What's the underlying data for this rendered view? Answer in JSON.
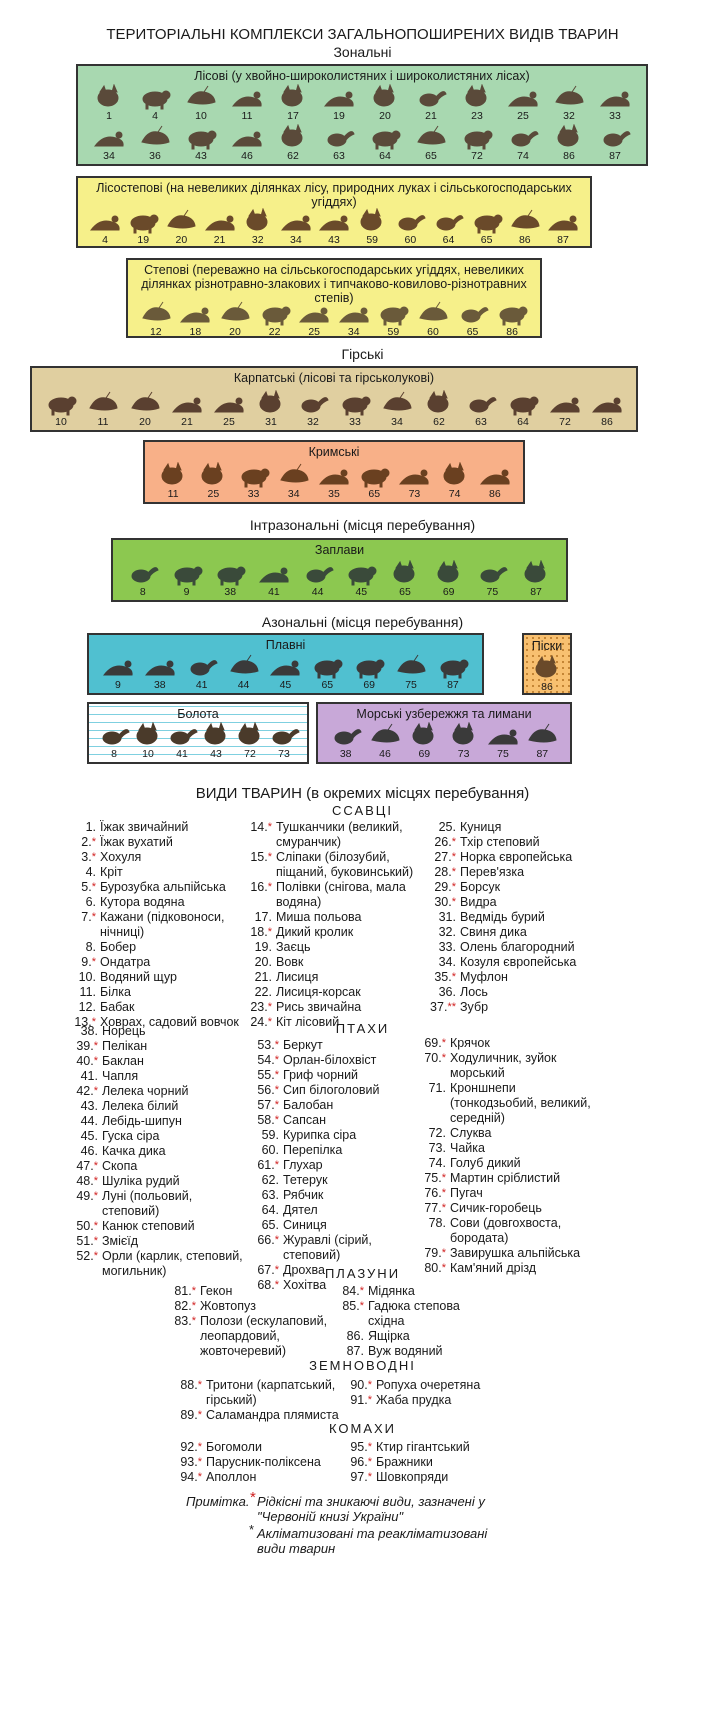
{
  "header": {
    "title": "ТЕРИТОРІАЛЬНІ КОМПЛЕКСИ ЗАГАЛЬНОПОШИРЕНИХ ВИДІВ ТВАРИН",
    "zonal": "Зональні",
    "mountain": "Гірські",
    "intrazonal": "Інтразональні (місця перебування)",
    "azonal": "Азональні (місця перебування)"
  },
  "panels": {
    "forest": {
      "title": "Лісові (у хвойно-широколистяних і широколистяних лісах)",
      "color": "#a8d8b0",
      "row1": [
        "1",
        "4",
        "10",
        "11",
        "17",
        "19",
        "20",
        "21",
        "23",
        "25",
        "32",
        "33"
      ],
      "row2": [
        "34",
        "36",
        "43",
        "46",
        "62",
        "63",
        "64",
        "65",
        "72",
        "74",
        "86",
        "87"
      ]
    },
    "foreststeppe": {
      "title": "Лісостепові (на невеликих ділянках лісу, природних луках і сільськогосподарських угіддях)",
      "color": "#f6f08a",
      "row1": [
        "4",
        "19",
        "20",
        "21",
        "32",
        "34",
        "43",
        "59",
        "60",
        "64",
        "65",
        "86",
        "87"
      ]
    },
    "steppe": {
      "title": "Степові (переважно на сільськогосподарських угіддях, невеликих ділянках різнотравно-злакових і типчаково-ковилово-різнотравних степів)",
      "color": "#f6f08a",
      "row1": [
        "12",
        "18",
        "20",
        "22",
        "25",
        "34",
        "59",
        "60",
        "65",
        "86"
      ]
    },
    "carpathian": {
      "title": "Карпатські (лісові та гірськолукові)",
      "color": "#e0cfa0",
      "row1": [
        "10",
        "11",
        "20",
        "21",
        "25",
        "31",
        "32",
        "33",
        "34",
        "62",
        "63",
        "64",
        "72",
        "86"
      ]
    },
    "crimean": {
      "title": "Кримські",
      "color": "#f8b088",
      "row1": [
        "11",
        "25",
        "33",
        "34",
        "35",
        "65",
        "73",
        "74",
        "86"
      ]
    },
    "floodplain": {
      "title": "Заплави",
      "color": "#8cc850",
      "row1": [
        "8",
        "9",
        "38",
        "41",
        "44",
        "45",
        "65",
        "69",
        "75",
        "87"
      ]
    },
    "plavni": {
      "title": "Плавні",
      "color": "#50c0d0",
      "row1": [
        "9",
        "38",
        "41",
        "44",
        "45",
        "65",
        "69",
        "75",
        "87"
      ]
    },
    "sands": {
      "title": "Піски",
      "color": "#f8c070",
      "row1": [
        "86"
      ]
    },
    "swamps": {
      "title": "Болота",
      "color": "#ffffff",
      "row1": [
        "8",
        "10",
        "41",
        "43",
        "72",
        "73"
      ]
    },
    "coast": {
      "title": "Морські узбережжя та лимани",
      "color": "#c8a8d8",
      "row1": [
        "38",
        "46",
        "69",
        "73",
        "75",
        "87"
      ]
    }
  },
  "species": {
    "title": "ВИДИ ТВАРИН (в окремих місцях перебування)",
    "mammals_head": "ССАВЦІ",
    "birds_head": "ПТАХИ",
    "reptiles_head": "ПЛАЗУНИ",
    "amphibians_head": "ЗЕМНОВОДНІ",
    "insects_head": "КОМАХИ",
    "mammals1": [
      {
        "n": "1.",
        "s": "",
        "t": "Їжак звичайний"
      },
      {
        "n": "2.",
        "s": "*",
        "t": "Їжак вухатий"
      },
      {
        "n": "3.",
        "s": "*",
        "t": "Хохуля"
      },
      {
        "n": "4.",
        "s": "",
        "t": "Кріт"
      },
      {
        "n": "5.",
        "s": "*",
        "t": "Бурозубка альпійська"
      },
      {
        "n": "6.",
        "s": "",
        "t": "Кутора водяна"
      },
      {
        "n": "7.",
        "s": "*",
        "t": "Кажани (підковоноси, нічниці)"
      },
      {
        "n": "8.",
        "s": "",
        "t": "Бобер"
      },
      {
        "n": "9.",
        "s": "*",
        "t": "Ондатра"
      },
      {
        "n": "10.",
        "s": "",
        "t": "Водяний щур"
      },
      {
        "n": "11.",
        "s": "",
        "t": "Білка"
      },
      {
        "n": "12.",
        "s": "",
        "t": "Бабак"
      },
      {
        "n": "13.",
        "s": "*",
        "t": "Ховрах, садовий вовчок"
      }
    ],
    "mammals2": [
      {
        "n": "14.",
        "s": "*",
        "t": "Тушканчики (великий, смуранчик)"
      },
      {
        "n": "15.",
        "s": "*",
        "t": "Сліпаки (білозубий, піщаний, буковинський)"
      },
      {
        "n": "16.",
        "s": "*",
        "t": "Полівки (снігова, мала водяна)"
      },
      {
        "n": "17.",
        "s": "",
        "t": "Миша польова"
      },
      {
        "n": "18.",
        "s": "*",
        "t": "Дикий кролик"
      },
      {
        "n": "19.",
        "s": "",
        "t": "Заєць"
      },
      {
        "n": "20.",
        "s": "",
        "t": "Вовк"
      },
      {
        "n": "21.",
        "s": "",
        "t": "Лисиця"
      },
      {
        "n": "22.",
        "s": "",
        "t": "Лисиця-корсак"
      },
      {
        "n": "23.",
        "s": "*",
        "t": "Рись звичайна"
      },
      {
        "n": "24.",
        "s": "*",
        "t": "Кіт лісовий"
      }
    ],
    "mammals3": [
      {
        "n": "25.",
        "s": "",
        "t": "Куниця"
      },
      {
        "n": "26.",
        "s": "*",
        "t": "Тхір степовий"
      },
      {
        "n": "27.",
        "s": "*",
        "t": "Норка європейська"
      },
      {
        "n": "28.",
        "s": "*",
        "t": "Перев'язка"
      },
      {
        "n": "29.",
        "s": "*",
        "t": "Борсук"
      },
      {
        "n": "30.",
        "s": "*",
        "t": "Видра"
      },
      {
        "n": "31.",
        "s": "",
        "t": "Ведмідь бурий"
      },
      {
        "n": "32.",
        "s": "",
        "t": "Свиня дика"
      },
      {
        "n": "33.",
        "s": "",
        "t": "Олень благородний"
      },
      {
        "n": "34.",
        "s": "",
        "t": "Козуля європейська"
      },
      {
        "n": "35.",
        "s": "*",
        "t": "Муфлон"
      },
      {
        "n": "36.",
        "s": "",
        "t": "Лось"
      },
      {
        "n": "37.",
        "s": "**",
        "t": "Зубр"
      }
    ],
    "birds1": [
      {
        "n": "38.",
        "s": "",
        "t": "Норець"
      },
      {
        "n": "39.",
        "s": "*",
        "t": "Пелікан"
      },
      {
        "n": "40.",
        "s": "*",
        "t": "Баклан"
      },
      {
        "n": "41.",
        "s": "",
        "t": "Чапля"
      },
      {
        "n": "42.",
        "s": "*",
        "t": "Лелека чорний"
      },
      {
        "n": "43.",
        "s": "",
        "t": "Лелека білий"
      },
      {
        "n": "44.",
        "s": "",
        "t": "Лебідь-шипун"
      },
      {
        "n": "45.",
        "s": "",
        "t": "Гуска сіра"
      },
      {
        "n": "46.",
        "s": "",
        "t": "Качка дика"
      },
      {
        "n": "47.",
        "s": "*",
        "t": "Скопа"
      },
      {
        "n": "48.",
        "s": "*",
        "t": "Шуліка рудий"
      },
      {
        "n": "49.",
        "s": "*",
        "t": "Луні (польовий, степовий)"
      },
      {
        "n": "50.",
        "s": "*",
        "t": "Канюк степовий"
      },
      {
        "n": "51.",
        "s": "*",
        "t": "Змієїд"
      },
      {
        "n": "52.",
        "s": "*",
        "t": "Орли (карлик, степовий, могильник)"
      }
    ],
    "birds2": [
      {
        "n": "53.",
        "s": "*",
        "t": "Беркут"
      },
      {
        "n": "54.",
        "s": "*",
        "t": "Орлан-білохвіст"
      },
      {
        "n": "55.",
        "s": "*",
        "t": "Гриф чорний"
      },
      {
        "n": "56.",
        "s": "*",
        "t": "Сип білоголовий"
      },
      {
        "n": "57.",
        "s": "*",
        "t": "Балобан"
      },
      {
        "n": "58.",
        "s": "*",
        "t": "Сапсан"
      },
      {
        "n": "59.",
        "s": "",
        "t": "Курипка сіра"
      },
      {
        "n": "60.",
        "s": "",
        "t": "Перепілка"
      },
      {
        "n": "61.",
        "s": "*",
        "t": "Глухар"
      },
      {
        "n": "62.",
        "s": "",
        "t": "Тетерук"
      },
      {
        "n": "63.",
        "s": "",
        "t": "Рябчик"
      },
      {
        "n": "64.",
        "s": "",
        "t": "Дятел"
      },
      {
        "n": "65.",
        "s": "",
        "t": "Синиця"
      },
      {
        "n": "66.",
        "s": "*",
        "t": "Журавлі (сірий, степовий)"
      },
      {
        "n": "67.",
        "s": "*",
        "t": "Дрохва"
      },
      {
        "n": "68.",
        "s": "*",
        "t": "Хохітва"
      }
    ],
    "birds3": [
      {
        "n": "69.",
        "s": "*",
        "t": "Крячок"
      },
      {
        "n": "70.",
        "s": "*",
        "t": "Ходуличник, зуйок морський"
      },
      {
        "n": "71.",
        "s": "",
        "t": "Кроншнепи (тонкодзьобий, великий, середній)"
      },
      {
        "n": "72.",
        "s": "",
        "t": "Слуква"
      },
      {
        "n": "73.",
        "s": "",
        "t": "Чайка"
      },
      {
        "n": "74.",
        "s": "",
        "t": "Голуб дикий"
      },
      {
        "n": "75.",
        "s": "*",
        "t": "Мартин сріблистий"
      },
      {
        "n": "76.",
        "s": "*",
        "t": "Пугач"
      },
      {
        "n": "77.",
        "s": "*",
        "t": "Сичик-горобець"
      },
      {
        "n": "78.",
        "s": "",
        "t": "Сови (довгохвоста, бородата)"
      },
      {
        "n": "79.",
        "s": "*",
        "t": "Завирушка альпійська"
      },
      {
        "n": "80.",
        "s": "*",
        "t": "Кам'яний дрізд"
      }
    ],
    "reptiles1": [
      {
        "n": "81.",
        "s": "*",
        "t": "Гекон"
      },
      {
        "n": "82.",
        "s": "*",
        "t": "Жовтопуз"
      },
      {
        "n": "83.",
        "s": "*",
        "t": "Полози (ескулаповий, леопардовий, жовточеревий)"
      }
    ],
    "reptiles2": [
      {
        "n": "84.",
        "s": "*",
        "t": "Мідянка"
      },
      {
        "n": "85.",
        "s": "*",
        "t": "Гадюка степова східна"
      },
      {
        "n": "86.",
        "s": "",
        "t": "Ящірка"
      },
      {
        "n": "87.",
        "s": "",
        "t": "Вуж водяний"
      }
    ],
    "amph1": [
      {
        "n": "88.",
        "s": "*",
        "t": "Тритони (карпатський, гірський)"
      },
      {
        "n": "89.",
        "s": "*",
        "t": "Саламандра плямиста"
      }
    ],
    "amph2": [
      {
        "n": "90.",
        "s": "*",
        "t": "Ропуха очеретяна"
      },
      {
        "n": "91.",
        "s": "*",
        "t": "Жаба прудка"
      }
    ],
    "insects1": [
      {
        "n": "92.",
        "s": "*",
        "t": "Богомоли"
      },
      {
        "n": "93.",
        "s": "*",
        "t": "Парусник-поліксена"
      },
      {
        "n": "94.",
        "s": "*",
        "t": "Аполлон"
      }
    ],
    "insects2": [
      {
        "n": "95.",
        "s": "*",
        "t": "Ктир гігантський"
      },
      {
        "n": "96.",
        "s": "*",
        "t": "Бражники"
      },
      {
        "n": "97.",
        "s": "*",
        "t": "Шовкопряди"
      }
    ]
  },
  "note": {
    "label": "Примітка.",
    "star1": "*",
    "line1": "Рідкісні та зникаючі види, зазначені у \"Червоній книзі України\"",
    "star2": "*",
    "line2": "Акліматизовані та реакліматизовані види тварин"
  }
}
